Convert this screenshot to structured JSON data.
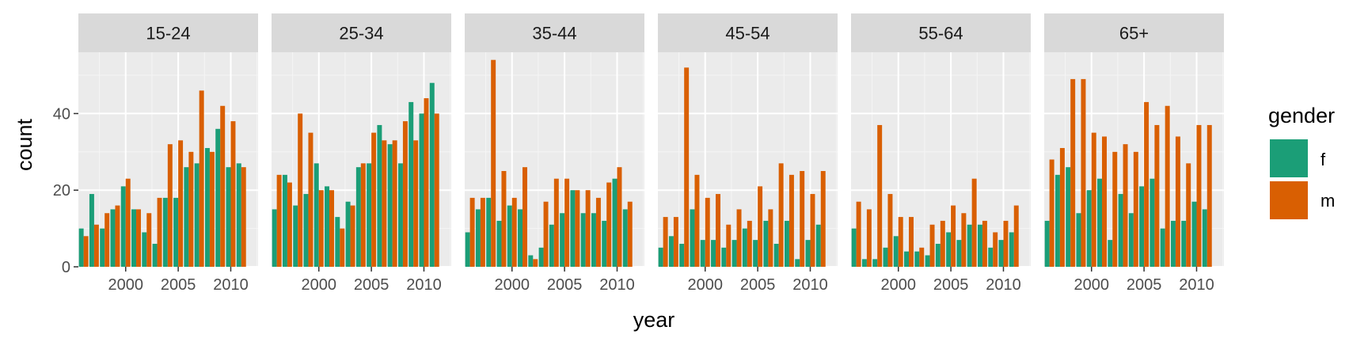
{
  "chart_data": {
    "type": "bar",
    "layout": "faceted",
    "xlabel": "year",
    "ylabel": "count",
    "ylim": [
      0,
      56
    ],
    "xlim": [
      1995.5,
      2012.6
    ],
    "x_ticks": [
      2000,
      2005,
      2010
    ],
    "y_ticks": [
      0,
      20,
      40
    ],
    "grid": true,
    "legend": {
      "title": "gender",
      "position": "right",
      "entries": [
        {
          "key": "f",
          "label": "f",
          "color": "#1b9e77"
        },
        {
          "key": "m",
          "label": "m",
          "color": "#d95f02"
        }
      ]
    },
    "years": [
      1996,
      1997,
      1998,
      1999,
      2000,
      2001,
      2002,
      2003,
      2004,
      2005,
      2006,
      2007,
      2008,
      2009,
      2010,
      2011,
      2012
    ],
    "panels": [
      {
        "label": "15-24",
        "series": [
          {
            "name": "f",
            "values": [
              10,
              19,
              10,
              15,
              21,
              15,
              9,
              6,
              18,
              18,
              26,
              27,
              31,
              36,
              26,
              27,
              null
            ]
          },
          {
            "name": "m",
            "values": [
              8,
              11,
              14,
              16,
              23,
              15,
              14,
              18,
              32,
              33,
              30,
              46,
              30,
              42,
              38,
              26,
              null
            ]
          }
        ]
      },
      {
        "label": "25-34",
        "series": [
          {
            "name": "f",
            "values": [
              15,
              24,
              16,
              19,
              27,
              21,
              13,
              17,
              26,
              27,
              37,
              32,
              27,
              43,
              40,
              48,
              null
            ]
          },
          {
            "name": "m",
            "values": [
              24,
              22,
              40,
              35,
              20,
              20,
              10,
              16,
              27,
              35,
              33,
              33,
              38,
              33,
              44,
              40,
              null
            ]
          }
        ]
      },
      {
        "label": "35-44",
        "series": [
          {
            "name": "f",
            "values": [
              9,
              15,
              18,
              12,
              16,
              15,
              3,
              5,
              11,
              14,
              20,
              14,
              14,
              12,
              23,
              15,
              null
            ]
          },
          {
            "name": "m",
            "values": [
              18,
              18,
              54,
              25,
              18,
              26,
              2,
              17,
              23,
              23,
              20,
              20,
              18,
              22,
              26,
              17,
              null
            ]
          }
        ]
      },
      {
        "label": "45-54",
        "series": [
          {
            "name": "f",
            "values": [
              5,
              8,
              6,
              15,
              7,
              7,
              5,
              7,
              10,
              7,
              12,
              6,
              12,
              2,
              7,
              11,
              null
            ]
          },
          {
            "name": "m",
            "values": [
              13,
              13,
              52,
              24,
              18,
              19,
              11,
              15,
              12,
              21,
              15,
              27,
              24,
              25,
              19,
              25,
              null
            ]
          }
        ]
      },
      {
        "label": "55-64",
        "series": [
          {
            "name": "f",
            "values": [
              10,
              2,
              2,
              5,
              8,
              4,
              4,
              3,
              6,
              9,
              7,
              11,
              11,
              5,
              7,
              9,
              null
            ]
          },
          {
            "name": "m",
            "values": [
              17,
              15,
              37,
              19,
              13,
              13,
              5,
              11,
              12,
              16,
              14,
              23,
              12,
              9,
              12,
              16,
              null
            ]
          }
        ]
      },
      {
        "label": "65+",
        "series": [
          {
            "name": "f",
            "values": [
              12,
              24,
              26,
              14,
              20,
              23,
              7,
              19,
              14,
              21,
              23,
              10,
              12,
              12,
              17,
              15,
              null
            ]
          },
          {
            "name": "m",
            "values": [
              28,
              31,
              49,
              49,
              35,
              34,
              30,
              32,
              30,
              43,
              37,
              42,
              34,
              27,
              37,
              37,
              null
            ]
          }
        ]
      }
    ]
  }
}
